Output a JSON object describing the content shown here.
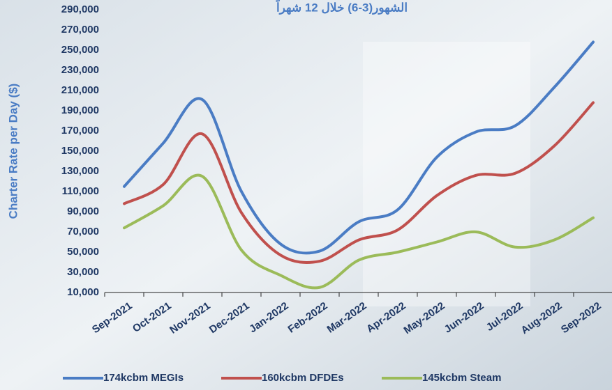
{
  "chart_data": {
    "type": "line",
    "title": "الشهور(3-6) خلال 12 شهراً",
    "y_label": "Charter Rate per Day ($)",
    "categories": [
      "Sep-2021",
      "Oct-2021",
      "Nov-2021",
      "Dec-2021",
      "Jan-2022",
      "Feb-2022",
      "Mar-2022",
      "Apr-2022",
      "May-2022",
      "Jun-2022",
      "Jul-2022",
      "Aug-2022",
      "Sep-2022"
    ],
    "series": [
      {
        "name": "174kcbm MEGIs",
        "color": "#4a7cc4",
        "values": [
          115000,
          158000,
          201000,
          110000,
          58000,
          51000,
          80000,
          92000,
          144000,
          169000,
          175000,
          213000,
          258000
        ]
      },
      {
        "name": "160kcbm DFDEs",
        "color": "#c0504d",
        "values": [
          98000,
          117000,
          167000,
          89000,
          47000,
          41000,
          62000,
          72000,
          106000,
          126000,
          128000,
          155000,
          198000
        ]
      },
      {
        "name": "145kcbm Steam",
        "color": "#9bbb59",
        "values": [
          74000,
          96000,
          125000,
          52000,
          27000,
          15000,
          42000,
          50000,
          60000,
          70000,
          55000,
          62000,
          84000
        ]
      }
    ],
    "ylim": [
      10000,
      290000
    ],
    "yticks": [
      {
        "value": 10000,
        "label": "10,000"
      },
      {
        "value": 30000,
        "label": "30,000"
      },
      {
        "value": 50000,
        "label": "50,000"
      },
      {
        "value": 70000,
        "label": "70,000"
      },
      {
        "value": 90000,
        "label": "90,000"
      },
      {
        "value": 110000,
        "label": "110,000"
      },
      {
        "value": 130000,
        "label": "130,000"
      },
      {
        "value": 150000,
        "label": "150,000"
      },
      {
        "value": 170000,
        "label": "170,000"
      },
      {
        "value": 190000,
        "label": "190,000"
      },
      {
        "value": 210000,
        "label": "210,000"
      },
      {
        "value": 230000,
        "label": "230,000"
      },
      {
        "value": 250000,
        "label": "250,000"
      },
      {
        "value": 270000,
        "label": "270,000"
      },
      {
        "value": 290000,
        "label": "290,000"
      }
    ]
  }
}
